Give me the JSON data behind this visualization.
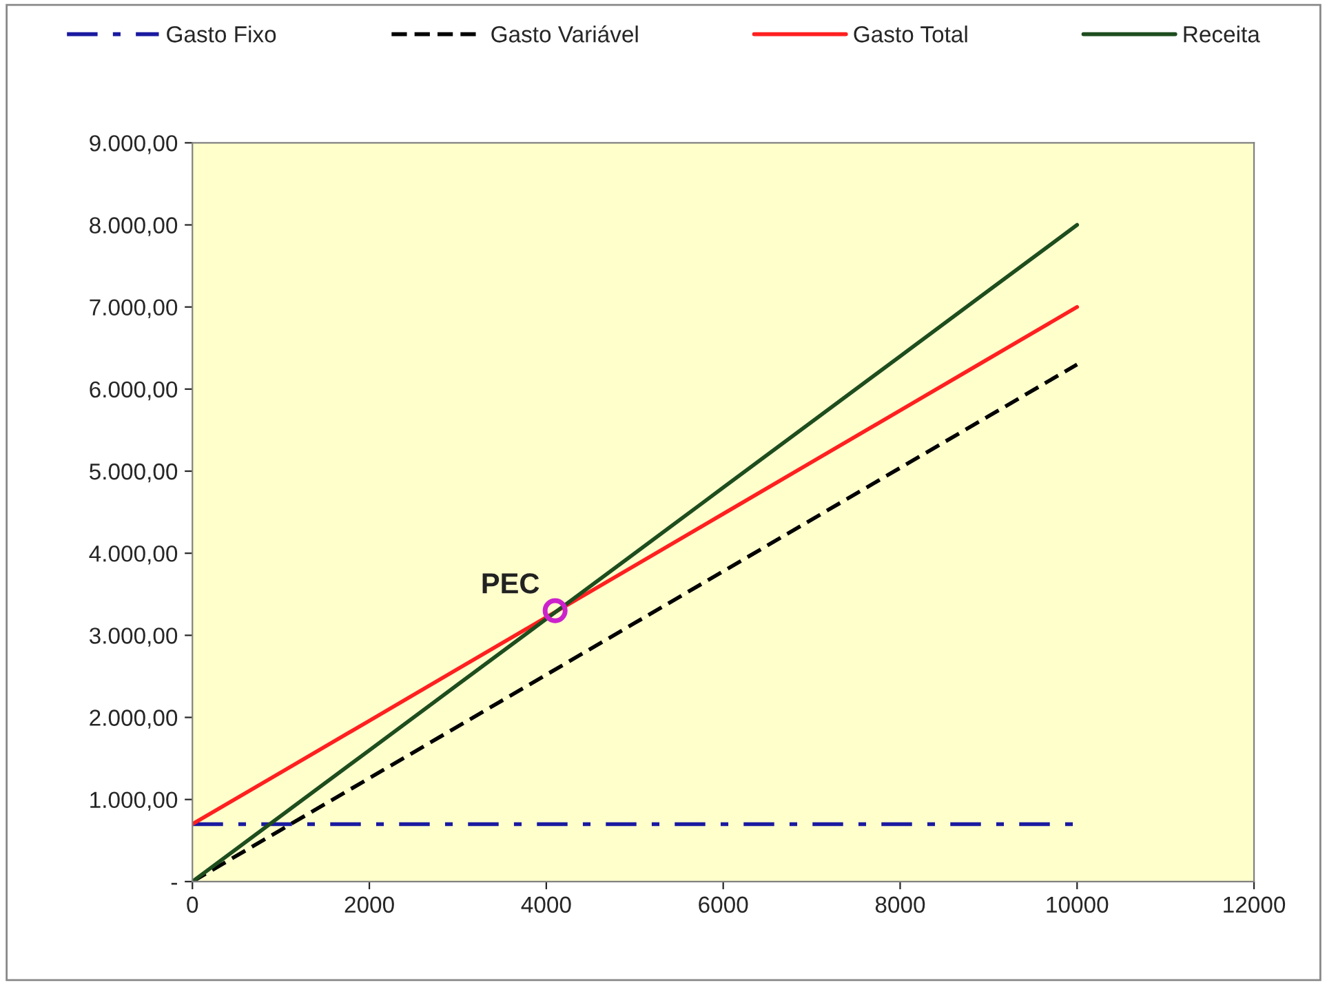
{
  "chart_data": {
    "type": "line",
    "x": [
      0,
      1000,
      2000,
      3000,
      4000,
      5000,
      6000,
      7000,
      8000,
      9000,
      10000
    ],
    "series": [
      {
        "name": "Gasto Fixo",
        "color": "#1a1aa0",
        "line_style": "dashdot",
        "values": [
          700,
          700,
          700,
          700,
          700,
          700,
          700,
          700,
          700,
          700,
          700
        ]
      },
      {
        "name": "Gasto Variável",
        "color": "#000000",
        "line_style": "dashed",
        "values": [
          0,
          630,
          1260,
          1890,
          2520,
          3150,
          3780,
          4410,
          5040,
          5670,
          6300
        ]
      },
      {
        "name": "Gasto Total",
        "color": "#ff2020",
        "line_style": "solid",
        "values": [
          700,
          1330,
          1960,
          2590,
          3220,
          3850,
          4480,
          5110,
          5740,
          6370,
          7000
        ]
      },
      {
        "name": "Receita",
        "color": "#1e4d1e",
        "line_style": "solid",
        "values": [
          0,
          800,
          1600,
          2400,
          3200,
          4000,
          4800,
          5600,
          6400,
          7200,
          8000
        ]
      },
      {
        "type": "scatter",
        "x": [
          4100
        ],
        "values": [
          3300
        ],
        "color": "#cc22cc",
        "marker": "circle"
      }
    ],
    "annotations": [
      {
        "text": "PEC",
        "x": 4100,
        "y": 3300
      }
    ],
    "xlim": [
      0,
      12000
    ],
    "xticks": [
      0,
      2000,
      4000,
      6000,
      8000,
      10000,
      12000
    ],
    "ylim": [
      0,
      9000
    ],
    "yticks": [
      {
        "value": 0,
        "label": "-"
      },
      {
        "value": 1000,
        "label": "1.000,00"
      },
      {
        "value": 2000,
        "label": "2.000,00"
      },
      {
        "value": 3000,
        "label": "3.000,00"
      },
      {
        "value": 4000,
        "label": "4.000,00"
      },
      {
        "value": 5000,
        "label": "5.000,00"
      },
      {
        "value": 6000,
        "label": "6.000,00"
      },
      {
        "value": 7000,
        "label": "7.000,00"
      },
      {
        "value": 8000,
        "label": "8.000,00"
      },
      {
        "value": 9000,
        "label": "9.000,00"
      }
    ],
    "legend": "top",
    "grid": false
  }
}
